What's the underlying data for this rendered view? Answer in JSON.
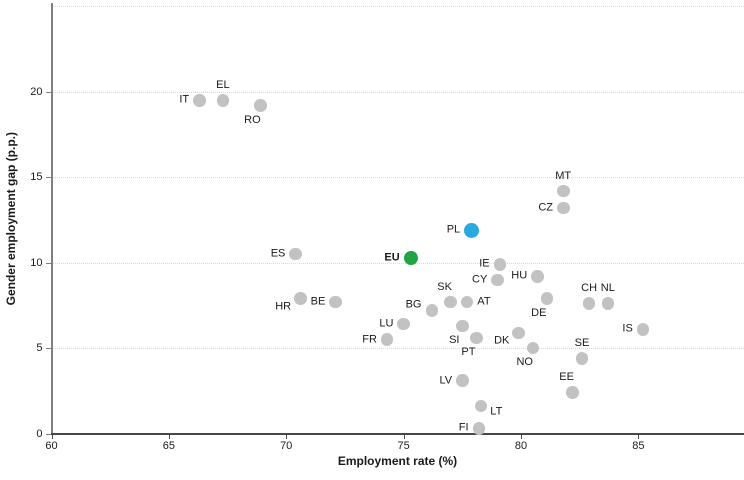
{
  "chart_data": {
    "type": "scatter",
    "title": "",
    "xlabel": "Employment rate (%)",
    "ylabel": "Gender employment gap (p.p.)",
    "xlim": [
      60,
      89.5
    ],
    "ylim": [
      0,
      25.2
    ],
    "x_ticks": [
      60,
      65,
      70,
      75,
      80,
      85
    ],
    "y_ticks": [
      0,
      5,
      10,
      15,
      20
    ],
    "gridlines_y": [
      5,
      10,
      15,
      20,
      25
    ],
    "grid": "horizontal-dotted",
    "legend": "none",
    "colors": {
      "default": "#c2c2c2",
      "eu": "#21a544",
      "highlight": "#29a9e0"
    },
    "points": [
      {
        "label": "IT",
        "x": 66.3,
        "y": 19.5,
        "group": "default",
        "label_pos": "left"
      },
      {
        "label": "EL",
        "x": 67.3,
        "y": 19.5,
        "group": "default",
        "label_pos": "above"
      },
      {
        "label": "RO",
        "x": 68.9,
        "y": 19.2,
        "group": "default",
        "label_pos": "below-left"
      },
      {
        "label": "MT",
        "x": 81.8,
        "y": 14.2,
        "group": "default",
        "label_pos": "above"
      },
      {
        "label": "CZ",
        "x": 81.8,
        "y": 13.2,
        "group": "default",
        "label_pos": "left"
      },
      {
        "label": "PL",
        "x": 77.9,
        "y": 11.9,
        "group": "highlight",
        "label_pos": "left"
      },
      {
        "label": "EU",
        "x": 75.3,
        "y": 10.3,
        "group": "eu",
        "label_pos": "left",
        "bold": true
      },
      {
        "label": "ES",
        "x": 70.4,
        "y": 10.5,
        "group": "default",
        "label_pos": "left"
      },
      {
        "label": "IE",
        "x": 79.1,
        "y": 9.9,
        "group": "default",
        "label_pos": "left"
      },
      {
        "label": "HU",
        "x": 80.7,
        "y": 9.2,
        "group": "default",
        "label_pos": "left"
      },
      {
        "label": "CY",
        "x": 79.0,
        "y": 9.0,
        "group": "default",
        "label_pos": "left"
      },
      {
        "label": "HR",
        "x": 70.6,
        "y": 7.9,
        "group": "default",
        "label_pos": "left-down"
      },
      {
        "label": "BE",
        "x": 72.1,
        "y": 7.7,
        "group": "default",
        "label_pos": "left"
      },
      {
        "label": "SK",
        "x": 77.0,
        "y": 7.7,
        "group": "default",
        "label_pos": "above-left"
      },
      {
        "label": "AT",
        "x": 77.7,
        "y": 7.7,
        "group": "default",
        "label_pos": "right"
      },
      {
        "label": "DE",
        "x": 81.1,
        "y": 7.9,
        "group": "default",
        "label_pos": "below-left"
      },
      {
        "label": "CH",
        "x": 82.9,
        "y": 7.6,
        "group": "default",
        "label_pos": "above"
      },
      {
        "label": "NL",
        "x": 83.7,
        "y": 7.6,
        "group": "default",
        "label_pos": "above"
      },
      {
        "label": "BG",
        "x": 76.2,
        "y": 7.2,
        "group": "default",
        "label_pos": "left-up"
      },
      {
        "label": "LU",
        "x": 75.0,
        "y": 6.4,
        "group": "default",
        "label_pos": "left"
      },
      {
        "label": "SI",
        "x": 77.5,
        "y": 6.3,
        "group": "default",
        "label_pos": "below-left"
      },
      {
        "label": "IS",
        "x": 85.2,
        "y": 6.1,
        "group": "default",
        "label_pos": "left"
      },
      {
        "label": "DK",
        "x": 79.9,
        "y": 5.9,
        "group": "default",
        "label_pos": "left-down"
      },
      {
        "label": "PT",
        "x": 78.1,
        "y": 5.6,
        "group": "default",
        "label_pos": "below-left"
      },
      {
        "label": "FR",
        "x": 74.3,
        "y": 5.5,
        "group": "default",
        "label_pos": "left"
      },
      {
        "label": "NO",
        "x": 80.5,
        "y": 5.0,
        "group": "default",
        "label_pos": "below-left"
      },
      {
        "label": "SE",
        "x": 82.6,
        "y": 4.4,
        "group": "default",
        "label_pos": "above"
      },
      {
        "label": "LV",
        "x": 77.5,
        "y": 3.1,
        "group": "default",
        "label_pos": "left"
      },
      {
        "label": "EE",
        "x": 82.2,
        "y": 2.4,
        "group": "default",
        "label_pos": "above-left"
      },
      {
        "label": "LT",
        "x": 78.3,
        "y": 1.6,
        "group": "default",
        "label_pos": "right-down"
      },
      {
        "label": "FI",
        "x": 78.2,
        "y": 0.3,
        "group": "default",
        "label_pos": "left"
      }
    ]
  }
}
